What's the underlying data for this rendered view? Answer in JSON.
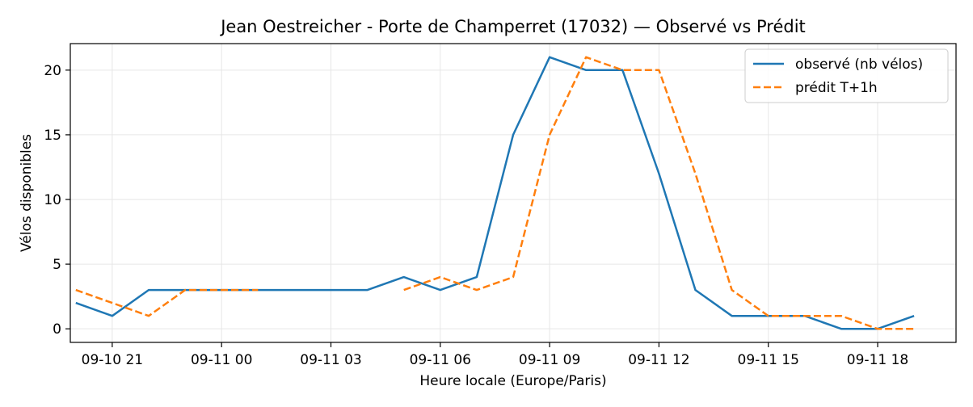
{
  "chart_data": {
    "type": "line",
    "title": "Jean Oestreicher - Porte de Champerret (17032) — Observé vs Prédit",
    "xlabel": "Heure locale (Europe/Paris)",
    "ylabel": "Vélos disponibles",
    "ylim": [
      -1.05,
      22.05
    ],
    "xlim": [
      "09-10 19:51",
      "09-11 20:09"
    ],
    "yticks": [
      0,
      5,
      10,
      15,
      20
    ],
    "xticks": [
      "09-10 21:00",
      "09-11 00:00",
      "09-11 03:00",
      "09-11 06:00",
      "09-11 09:00",
      "09-11 12:00",
      "09-11 15:00",
      "09-11 18:00"
    ],
    "xtick_labels": [
      "09-10 21",
      "09-11 00",
      "09-11 03",
      "09-11 06",
      "09-11 09",
      "09-11 12",
      "09-11 15",
      "09-11 18"
    ],
    "grid": true,
    "legend_position": "top-right",
    "series": [
      {
        "name": "observé (nb vélos)",
        "color": "#1f77b4",
        "style": "solid",
        "x": [
          "09-10 20:00",
          "09-10 21:00",
          "09-10 22:00",
          "09-10 23:00",
          "09-11 00:00",
          "09-11 01:00",
          "09-11 02:00",
          "09-11 03:00",
          "09-11 04:00",
          "09-11 05:00",
          "09-11 06:00",
          "09-11 07:00",
          "09-11 08:00",
          "09-11 09:00",
          "09-11 10:00",
          "09-11 11:00",
          "09-11 12:00",
          "09-11 13:00",
          "09-11 14:00",
          "09-11 15:00",
          "09-11 16:00",
          "09-11 17:00",
          "09-11 18:00",
          "09-11 19:00"
        ],
        "y": [
          2,
          1,
          3,
          3,
          3,
          3,
          3,
          3,
          3,
          4,
          3,
          4,
          15,
          21,
          20,
          20,
          12,
          3,
          1,
          1,
          1,
          0,
          0,
          1
        ]
      },
      {
        "name": "prédit T+1h",
        "color": "#ff7f0e",
        "style": "dashed",
        "x": [
          "09-10 20:00",
          "09-10 21:00",
          "09-10 22:00",
          "09-10 23:00",
          "09-11 00:00",
          "09-11 01:00",
          null,
          "09-11 05:00",
          "09-11 06:00",
          "09-11 07:00",
          "09-11 08:00",
          "09-11 09:00",
          "09-11 10:00",
          "09-11 11:00",
          "09-11 12:00",
          "09-11 13:00",
          "09-11 14:00",
          "09-11 15:00",
          "09-11 16:00",
          "09-11 17:00",
          "09-11 18:00",
          "09-11 19:00"
        ],
        "y": [
          3,
          2,
          1,
          3,
          3,
          3,
          null,
          3,
          4,
          3,
          4,
          15,
          21,
          20,
          20,
          12,
          3,
          1,
          1,
          1,
          0,
          0
        ]
      }
    ]
  }
}
